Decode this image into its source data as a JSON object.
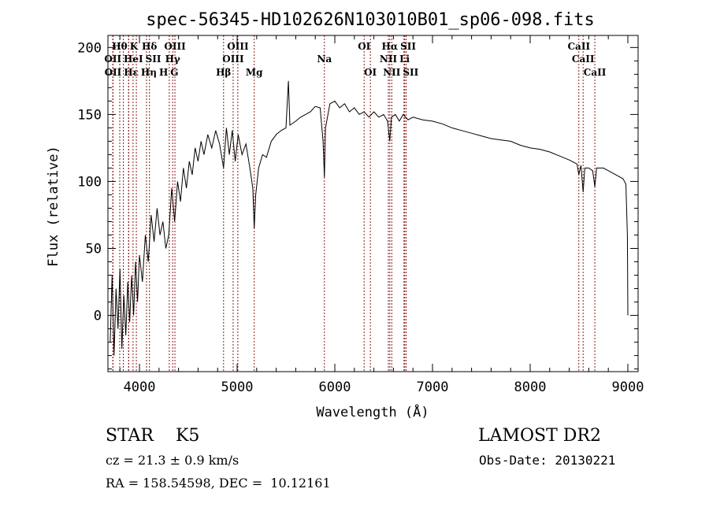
{
  "chart_data": {
    "type": "line",
    "title": "spec-56345-HD102626N103010B01_sp06-098.fits",
    "xlabel": "Wavelength (Å)",
    "ylabel": "Flux (relative)",
    "xlim": [
      3677,
      9105
    ],
    "ylim": [
      -42,
      209
    ],
    "xticks": [
      4000,
      5000,
      6000,
      7000,
      8000,
      9000
    ],
    "yticks": [
      0,
      50,
      100,
      150,
      200
    ],
    "grid": false,
    "series": [
      {
        "name": "spectrum",
        "color": "#000000",
        "points": [
          [
            3700,
            -20
          ],
          [
            3720,
            30
          ],
          [
            3740,
            -30
          ],
          [
            3760,
            20
          ],
          [
            3780,
            -10
          ],
          [
            3800,
            35
          ],
          [
            3820,
            -25
          ],
          [
            3840,
            15
          ],
          [
            3860,
            -15
          ],
          [
            3880,
            25
          ],
          [
            3900,
            -5
          ],
          [
            3920,
            30
          ],
          [
            3940,
            0
          ],
          [
            3960,
            40
          ],
          [
            3980,
            10
          ],
          [
            4000,
            45
          ],
          [
            4030,
            25
          ],
          [
            4060,
            60
          ],
          [
            4090,
            40
          ],
          [
            4120,
            75
          ],
          [
            4150,
            55
          ],
          [
            4180,
            80
          ],
          [
            4210,
            60
          ],
          [
            4240,
            70
          ],
          [
            4270,
            50
          ],
          [
            4300,
            60
          ],
          [
            4330,
            95
          ],
          [
            4360,
            70
          ],
          [
            4390,
            100
          ],
          [
            4420,
            85
          ],
          [
            4450,
            110
          ],
          [
            4480,
            95
          ],
          [
            4510,
            115
          ],
          [
            4540,
            105
          ],
          [
            4570,
            125
          ],
          [
            4600,
            115
          ],
          [
            4630,
            130
          ],
          [
            4660,
            120
          ],
          [
            4700,
            135
          ],
          [
            4740,
            125
          ],
          [
            4780,
            138
          ],
          [
            4820,
            128
          ],
          [
            4861,
            110
          ],
          [
            4890,
            140
          ],
          [
            4920,
            120
          ],
          [
            4950,
            138
          ],
          [
            4980,
            115
          ],
          [
            5010,
            135
          ],
          [
            5050,
            120
          ],
          [
            5090,
            128
          ],
          [
            5130,
            110
          ],
          [
            5160,
            95
          ],
          [
            5175,
            65
          ],
          [
            5190,
            90
          ],
          [
            5220,
            110
          ],
          [
            5260,
            120
          ],
          [
            5300,
            118
          ],
          [
            5350,
            130
          ],
          [
            5400,
            135
          ],
          [
            5450,
            138
          ],
          [
            5500,
            140
          ],
          [
            5525,
            175
          ],
          [
            5540,
            142
          ],
          [
            5600,
            145
          ],
          [
            5650,
            148
          ],
          [
            5700,
            150
          ],
          [
            5750,
            152
          ],
          [
            5800,
            156
          ],
          [
            5850,
            155
          ],
          [
            5880,
            130
          ],
          [
            5893,
            103
          ],
          [
            5905,
            140
          ],
          [
            5950,
            158
          ],
          [
            6000,
            160
          ],
          [
            6050,
            155
          ],
          [
            6100,
            158
          ],
          [
            6150,
            152
          ],
          [
            6200,
            155
          ],
          [
            6250,
            150
          ],
          [
            6300,
            152
          ],
          [
            6350,
            148
          ],
          [
            6400,
            152
          ],
          [
            6450,
            148
          ],
          [
            6500,
            150
          ],
          [
            6540,
            145
          ],
          [
            6563,
            130
          ],
          [
            6580,
            148
          ],
          [
            6620,
            150
          ],
          [
            6660,
            145
          ],
          [
            6700,
            150
          ],
          [
            6750,
            146
          ],
          [
            6800,
            148
          ],
          [
            6900,
            146
          ],
          [
            7000,
            145
          ],
          [
            7100,
            143
          ],
          [
            7200,
            140
          ],
          [
            7300,
            138
          ],
          [
            7400,
            136
          ],
          [
            7500,
            134
          ],
          [
            7600,
            132
          ],
          [
            7700,
            131
          ],
          [
            7800,
            130
          ],
          [
            7900,
            127
          ],
          [
            8000,
            125
          ],
          [
            8100,
            124
          ],
          [
            8200,
            122
          ],
          [
            8300,
            119
          ],
          [
            8400,
            116
          ],
          [
            8480,
            113
          ],
          [
            8498,
            105
          ],
          [
            8520,
            112
          ],
          [
            8542,
            92
          ],
          [
            8560,
            110
          ],
          [
            8600,
            110
          ],
          [
            8640,
            108
          ],
          [
            8662,
            96
          ],
          [
            8680,
            110
          ],
          [
            8750,
            110
          ],
          [
            8800,
            108
          ],
          [
            8850,
            106
          ],
          [
            8900,
            104
          ],
          [
            8950,
            102
          ],
          [
            8980,
            98
          ],
          [
            8995,
            60
          ],
          [
            9000,
            0
          ]
        ]
      }
    ],
    "lines": [
      {
        "label": "Hθ",
        "wavelength": 3798,
        "row": 1
      },
      {
        "label": "K",
        "wavelength": 3934,
        "row": 1
      },
      {
        "label": "Hδ",
        "wavelength": 4102,
        "row": 1
      },
      {
        "label": "OIII",
        "wavelength": 4363,
        "row": 1
      },
      {
        "label": "OIII",
        "wavelength": 5007,
        "row": 1
      },
      {
        "label": "OI",
        "wavelength": 6300,
        "row": 1
      },
      {
        "label": "Hα",
        "wavelength": 6563,
        "row": 1
      },
      {
        "label": "SII",
        "wavelength": 6716,
        "row": 1
      },
      {
        "label": "CaII",
        "wavelength": 8498,
        "row": 1
      },
      {
        "label": "OII",
        "wavelength": 3727,
        "row": 2
      },
      {
        "label": "HeI",
        "wavelength": 3889,
        "row": 2
      },
      {
        "label": "SII",
        "wavelength": 4072,
        "row": 2
      },
      {
        "label": "Hγ",
        "wavelength": 4340,
        "row": 2
      },
      {
        "label": "OIII",
        "wavelength": 4959,
        "row": 2
      },
      {
        "label": "Na",
        "wavelength": 5893,
        "row": 2
      },
      {
        "label": "NII",
        "wavelength": 6548,
        "row": 2
      },
      {
        "label": "Li",
        "wavelength": 6708,
        "row": 2
      },
      {
        "label": "CaII",
        "wavelength": 8542,
        "row": 2
      },
      {
        "label": "OII",
        "wavelength": 3729,
        "row": 3
      },
      {
        "label": "Hε",
        "wavelength": 3835,
        "row": 3
      },
      {
        "label": "Hη",
        "wavelength": 3889,
        "row": 3
      },
      {
        "label": "H",
        "wavelength": 3968,
        "row": 3
      },
      {
        "label": "G",
        "wavelength": 4305,
        "row": 3
      },
      {
        "label": "Hβ",
        "wavelength": 4861,
        "row": 3
      },
      {
        "label": "Mg",
        "wavelength": 5175,
        "row": 3
      },
      {
        "label": "OI",
        "wavelength": 6364,
        "row": 3
      },
      {
        "label": "NII",
        "wavelength": 6583,
        "row": 3
      },
      {
        "label": "SII",
        "wavelength": 6731,
        "row": 3
      },
      {
        "label": "CaII",
        "wavelength": 8662,
        "row": 3
      }
    ],
    "line_color": "#8b1a1a"
  },
  "info": {
    "object": "STAR    K5",
    "survey": "LAMOST DR2",
    "cz": "cz = 21.3 ± 0.9 km/s",
    "obs_date": "Obs-Date: 20130221",
    "coords": "RA = 158.54598, DEC =  10.12161"
  }
}
